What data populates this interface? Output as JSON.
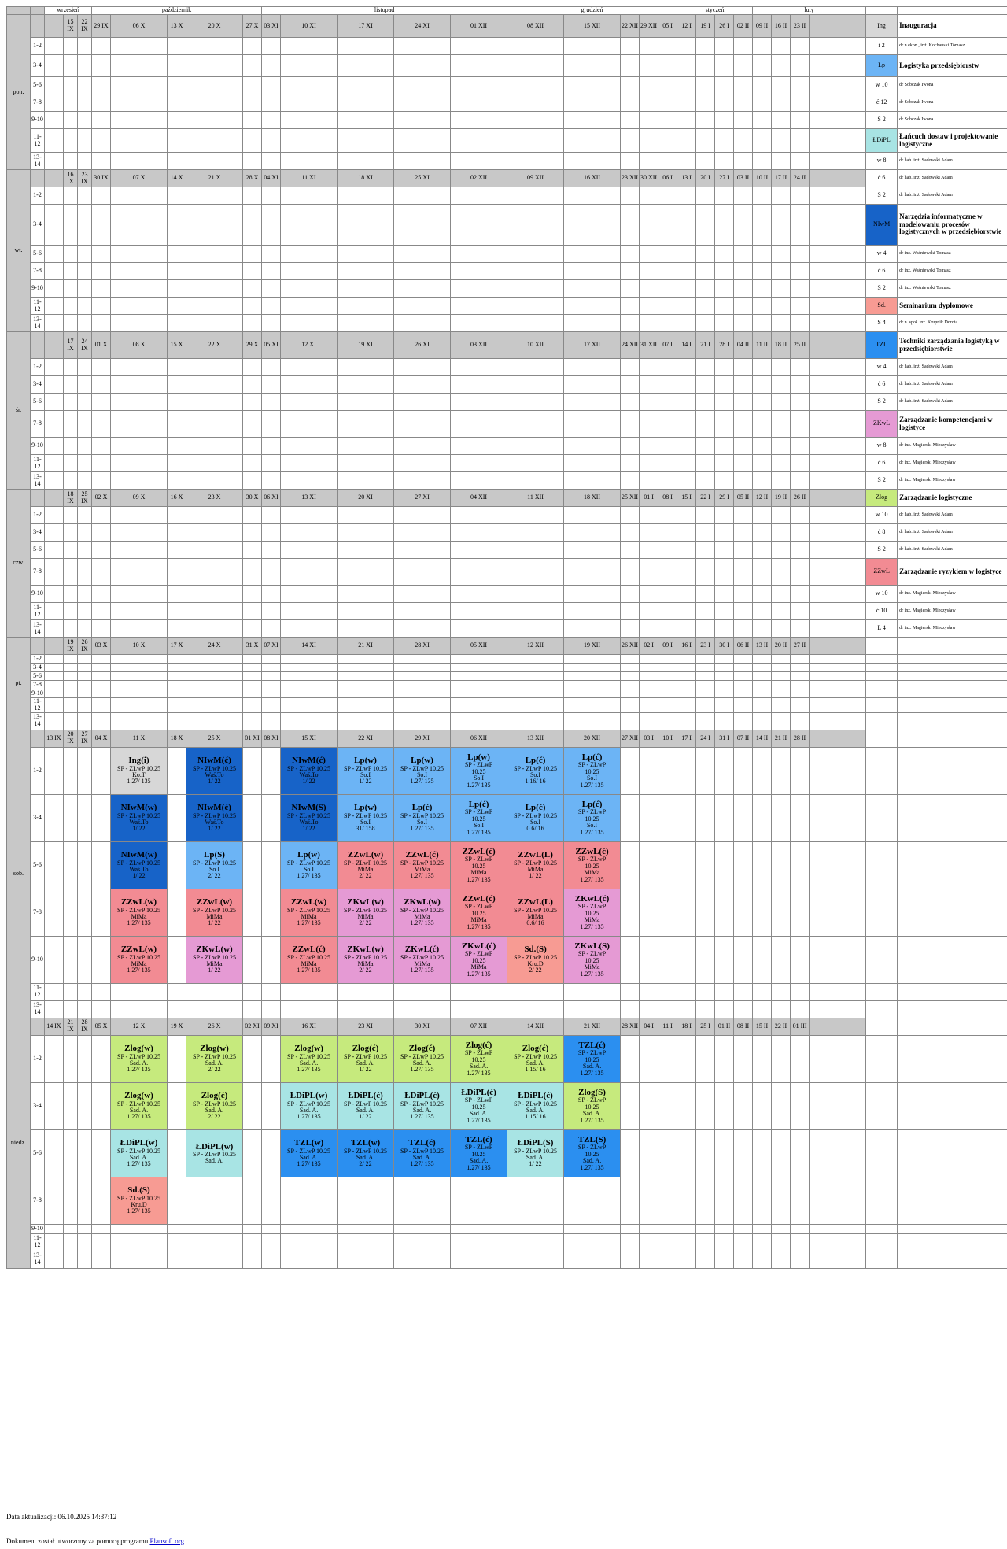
{
  "months": [
    {
      "label": "wrzesień",
      "span": 3
    },
    {
      "label": "październik",
      "span": 5
    },
    {
      "label": "listopad",
      "span": 5
    },
    {
      "label": "grudzień",
      "span": 5
    },
    {
      "label": "styczeń",
      "span": 4
    },
    {
      "label": "luty",
      "span": 3
    }
  ],
  "hours": [
    "1-2",
    "3-4",
    "5-6",
    "7-8",
    "9-10",
    "11-12",
    "13-14"
  ],
  "days": [
    {
      "name": "pon.",
      "dates": [
        "15 IX",
        "22 IX",
        "29 IX",
        "06 X",
        "13 X",
        "20 X",
        "27 X",
        "03 XI",
        "10 XI",
        "17 XI",
        "24 XI",
        "01 XII",
        "08 XII",
        "15 XII",
        "22 XII",
        "29 XII",
        "05 I",
        "12 I",
        "19 I",
        "26 I",
        "02 II",
        "09 II",
        "16 II",
        "23 II"
      ]
    },
    {
      "name": "wt.",
      "dates": [
        "16 IX",
        "23 IX",
        "30 IX",
        "07 X",
        "14 X",
        "21 X",
        "28 X",
        "04 XI",
        "11 XI",
        "18 XI",
        "25 XI",
        "02 XII",
        "09 XII",
        "16 XII",
        "23 XII",
        "30 XII",
        "06 I",
        "13 I",
        "20 I",
        "27 I",
        "03 II",
        "10 II",
        "17 II",
        "24 II"
      ]
    },
    {
      "name": "śr.",
      "dates": [
        "17 IX",
        "24 IX",
        "01 X",
        "08 X",
        "15 X",
        "22 X",
        "29 X",
        "05 XI",
        "12 XI",
        "19 XI",
        "26 XI",
        "03 XII",
        "10 XII",
        "17 XII",
        "24 XII",
        "31 XII",
        "07 I",
        "14 I",
        "21 I",
        "28 I",
        "04 II",
        "11 II",
        "18 II",
        "25 II"
      ]
    },
    {
      "name": "czw.",
      "dates": [
        "18 IX",
        "25 IX",
        "02 X",
        "09 X",
        "16 X",
        "23 X",
        "30 X",
        "06 XI",
        "13 XI",
        "20 XI",
        "27 XI",
        "04 XII",
        "11 XII",
        "18 XII",
        "25 XII",
        "01 I",
        "08 I",
        "15 I",
        "22 I",
        "29 I",
        "05 II",
        "12 II",
        "19 II",
        "26 II"
      ]
    },
    {
      "name": "pt.",
      "dates": [
        "19 IX",
        "26 IX",
        "03 X",
        "10 X",
        "17 X",
        "24 X",
        "31 X",
        "07 XI",
        "14 XI",
        "21 XI",
        "28 XI",
        "05 XII",
        "12 XII",
        "19 XII",
        "26 XII",
        "02 I",
        "09 I",
        "16 I",
        "23 I",
        "30 I",
        "06 II",
        "13 II",
        "20 II",
        "27 II"
      ]
    },
    {
      "name": "sob.",
      "dates": [
        "13 IX",
        "20 IX",
        "27 IX",
        "04 X",
        "11 X",
        "18 X",
        "25 X",
        "01 XI",
        "08 XI",
        "15 XI",
        "22 XI",
        "29 XI",
        "06 XII",
        "13 XII",
        "20 XII",
        "27 XII",
        "03 I",
        "10 I",
        "17 I",
        "24 I",
        "31 I",
        "07 II",
        "14 II",
        "21 II",
        "28 II"
      ]
    },
    {
      "name": "niedz.",
      "dates": [
        "14 IX",
        "21 IX",
        "28 IX",
        "05 X",
        "12 X",
        "19 X",
        "26 X",
        "02 XI",
        "09 XI",
        "16 XI",
        "23 XI",
        "30 XI",
        "07 XII",
        "14 XII",
        "21 XII",
        "28 XII",
        "04 I",
        "11 I",
        "18 I",
        "25 I",
        "01 II",
        "08 II",
        "15 II",
        "22 II",
        "01 III"
      ]
    }
  ],
  "legend": [
    {
      "abbr": "Ing",
      "desc": "Inauguracja",
      "bold": true,
      "color": "#d7d7d7"
    },
    {
      "abbr": "i 2",
      "desc": "dr n.ekon., inż. Kochański Tomasz"
    },
    {
      "abbr": "Lp",
      "desc": "Logistyka przedsiębiorstw",
      "bold": true,
      "color": "#6cb4f5"
    },
    {
      "abbr": "w 10",
      "desc": "dr Sobczak Iwona"
    },
    {
      "abbr": "ć 12",
      "desc": "dr Sobczak Iwona"
    },
    {
      "abbr": "S 2",
      "desc": "dr Sobczak Iwona"
    },
    {
      "abbr": "ŁDiPL",
      "desc": "Łańcuch dostaw i projektowanie logistyczne",
      "bold": true,
      "color": "#a8e4e4"
    },
    {
      "abbr": "w 8",
      "desc": "dr hab. inż. Sadowski Adam"
    },
    {
      "abbr": "ć 6",
      "desc": "dr hab. inż. Sadowski Adam"
    },
    {
      "abbr": "S 2",
      "desc": "dr hab. inż. Sadowski Adam"
    },
    {
      "abbr": "NIwM",
      "desc": "Narzędzia informatyczne w modelowaniu procesów logistycznych w przedsiębiorstwie",
      "bold": true,
      "color": "#1763c8"
    },
    {
      "abbr": "w 4",
      "desc": "dr inż. Waśniewski Tomasz"
    },
    {
      "abbr": "ć 6",
      "desc": "dr inż. Waśniewski Tomasz"
    },
    {
      "abbr": "S 2",
      "desc": "dr inż. Waśniewski Tomasz"
    },
    {
      "abbr": "Sd.",
      "desc": "Seminarium dyplomowe",
      "bold": true,
      "color": "#f79b93"
    },
    {
      "abbr": "S 4",
      "desc": "dr n. społ. inż. Krupnik Dorota"
    },
    {
      "abbr": "TZL",
      "desc": "Techniki zarządzania logistyką w przedsiębiorstwie",
      "bold": true,
      "color": "#2b8ff0"
    },
    {
      "abbr": "w 4",
      "desc": "dr hab. inż. Sadowski Adam"
    },
    {
      "abbr": "ć 6",
      "desc": "dr hab. inż. Sadowski Adam"
    },
    {
      "abbr": "S 2",
      "desc": "dr hab. inż. Sadowski Adam"
    },
    {
      "abbr": "ZKwL",
      "desc": "Zarządzanie kompetencjami w logistyce",
      "bold": true,
      "color": "#e59ad4"
    },
    {
      "abbr": "w 8",
      "desc": "dr inż. Magierski Mieczysław"
    },
    {
      "abbr": "ć 6",
      "desc": "dr inż. Magierski Mieczysław"
    },
    {
      "abbr": "S 2",
      "desc": "dr inż. Magierski Mieczysław"
    },
    {
      "abbr": "Zlog",
      "desc": "Zarządzanie logistyczne",
      "bold": true,
      "color": "#c6ea7d"
    },
    {
      "abbr": "w 10",
      "desc": "dr hab. inż. Sadowski Adam"
    },
    {
      "abbr": "ć 8",
      "desc": "dr hab. inż. Sadowski Adam"
    },
    {
      "abbr": "S 2",
      "desc": "dr hab. inż. Sadowski Adam"
    },
    {
      "abbr": "ZZwL",
      "desc": "Zarządzanie ryzykiem w logistyce",
      "bold": true,
      "color": "#f28b93"
    },
    {
      "abbr": "w 10",
      "desc": "dr inż. Magierski Mieczysław"
    },
    {
      "abbr": "ć 10",
      "desc": "dr inż. Magierski Mieczysław"
    },
    {
      "abbr": "L 4",
      "desc": "dr inż. Magierski Mieczysław"
    }
  ],
  "events": {
    "sob.": {
      "0": {
        "4": {
          "c": "ng",
          "t": "Ing(i)",
          "l": [
            "SP - ZLwP 10.25",
            "Ko.T",
            "1.27/ 135"
          ]
        },
        "6": {
          "c": "nl",
          "t": "NIwM(ć)",
          "l": [
            "SP - ZLwP 10.25",
            "Waś.To",
            "1/ 22"
          ]
        },
        "9": {
          "c": "nl",
          "t": "NIwM(ć)",
          "l": [
            "SP - ZLwP 10.25",
            "Waś.To",
            "1/ 22"
          ]
        },
        "10": {
          "c": "lp",
          "t": "Lp(w)",
          "l": [
            "SP - ZLwP 10.25",
            "So.I",
            "1/ 22"
          ]
        },
        "11": {
          "c": "lp",
          "t": "Lp(w)",
          "l": [
            "SP - ZLwP 10.25",
            "So.I",
            "1.27/ 135"
          ]
        },
        "12": {
          "c": "lp",
          "t": "Lp(w)",
          "l": [
            "SP - ZLwP",
            "10.25",
            "So.I",
            "1.27/ 135"
          ]
        },
        "13": {
          "c": "lp",
          "t": "Lp(ć)",
          "l": [
            "SP - ZLwP 10.25",
            "So.I",
            "1.16/ 16"
          ]
        },
        "14": {
          "c": "lp",
          "t": "Lp(ć)",
          "l": [
            "SP - ZLwP",
            "10.25",
            "So.I",
            "1.27/ 135"
          ]
        }
      },
      "1": {
        "4": {
          "c": "nl",
          "t": "NIwM(w)",
          "l": [
            "SP - ZLwP 10.25",
            "Waś.To",
            "1/ 22"
          ]
        },
        "6": {
          "c": "nl",
          "t": "NIwM(ć)",
          "l": [
            "SP - ZLwP 10.25",
            "Waś.To",
            "1/ 22"
          ]
        },
        "9": {
          "c": "nl",
          "t": "NIwM(S)",
          "l": [
            "SP - ZLwP 10.25",
            "Waś.To",
            "1/ 22"
          ]
        },
        "10": {
          "c": "lp",
          "t": "Lp(w)",
          "l": [
            "SP - ZLwP 10.25",
            "So.I",
            "31/ 158"
          ]
        },
        "11": {
          "c": "lp",
          "t": "Lp(ć)",
          "l": [
            "SP - ZLwP 10.25",
            "So.I",
            "1.27/ 135"
          ]
        },
        "12": {
          "c": "lp",
          "t": "Lp(ć)",
          "l": [
            "SP - ZLwP",
            "10.25",
            "So.I",
            "1.27/ 135"
          ]
        },
        "13": {
          "c": "lp",
          "t": "Lp(ć)",
          "l": [
            "SP - ZLwP 10.25",
            "So.I",
            "0.6/ 16"
          ]
        },
        "14": {
          "c": "lp",
          "t": "Lp(ć)",
          "l": [
            "SP - ZLwP",
            "10.25",
            "So.I",
            "1.27/ 135"
          ]
        }
      },
      "2": {
        "4": {
          "c": "nl",
          "t": "NIwM(w)",
          "l": [
            "SP - ZLwP 10.25",
            "Waś.To",
            "1/ 22"
          ]
        },
        "6": {
          "c": "lp",
          "t": "Lp(S)",
          "l": [
            "SP - ZLwP 10.25",
            "So.I",
            "2/ 22"
          ]
        },
        "9": {
          "c": "lp",
          "t": "Lp(w)",
          "l": [
            "SP - ZLwP 10.25",
            "So.I",
            "1.27/ 135"
          ]
        },
        "10": {
          "c": "zz",
          "t": "ZZwL(w)",
          "l": [
            "SP - ZLwP 10.25",
            "MiMa",
            "2/ 22"
          ]
        },
        "11": {
          "c": "zz",
          "t": "ZZwL(ć)",
          "l": [
            "SP - ZLwP 10.25",
            "MiMa",
            "1.27/ 135"
          ]
        },
        "12": {
          "c": "zz",
          "t": "ZZwL(ć)",
          "l": [
            "SP - ZLwP",
            "10.25",
            "MiMa",
            "1.27/ 135"
          ]
        },
        "13": {
          "c": "zz",
          "t": "ZZwL(L)",
          "l": [
            "SP - ZLwP 10.25",
            "MiMa",
            "1/ 22"
          ]
        },
        "14": {
          "c": "zz",
          "t": "ZZwL(ć)",
          "l": [
            "SP - ZLwP",
            "10.25",
            "MiMa",
            "1.27/ 135"
          ]
        }
      },
      "3": {
        "4": {
          "c": "zz",
          "t": "ZZwL(w)",
          "l": [
            "SP - ZLwP 10.25",
            "MiMa",
            "1.27/ 135"
          ]
        },
        "6": {
          "c": "zz",
          "t": "ZZwL(w)",
          "l": [
            "SP - ZLwP 10.25",
            "MiMa",
            "1/ 22"
          ]
        },
        "9": {
          "c": "zz",
          "t": "ZZwL(w)",
          "l": [
            "SP - ZLwP 10.25",
            "MiMa",
            "1.27/ 135"
          ]
        },
        "10": {
          "c": "zk",
          "t": "ZKwL(w)",
          "l": [
            "SP - ZLwP 10.25",
            "MiMa",
            "2/ 22"
          ]
        },
        "11": {
          "c": "zk",
          "t": "ZKwL(w)",
          "l": [
            "SP - ZLwP 10.25",
            "MiMa",
            "1.27/ 135"
          ]
        },
        "12": {
          "c": "zz",
          "t": "ZZwL(ć)",
          "l": [
            "SP - ZLwP",
            "10.25",
            "MiMa",
            "1.27/ 135"
          ]
        },
        "13": {
          "c": "zz",
          "t": "ZZwL(L)",
          "l": [
            "SP - ZLwP 10.25",
            "MiMa",
            "0.6/ 16"
          ]
        },
        "14": {
          "c": "zk",
          "t": "ZKwL(ć)",
          "l": [
            "SP - ZLwP",
            "10.25",
            "MiMa",
            "1.27/ 135"
          ]
        }
      },
      "4": {
        "4": {
          "c": "zz",
          "t": "ZZwL(w)",
          "l": [
            "SP - ZLwP 10.25",
            "MiMa",
            "1.27/ 135"
          ]
        },
        "6": {
          "c": "zk",
          "t": "ZKwL(w)",
          "l": [
            "SP - ZLwP 10.25",
            "MiMa",
            "1/ 22"
          ]
        },
        "9": {
          "c": "zz",
          "t": "ZZwL(ć)",
          "l": [
            "SP - ZLwP 10.25",
            "MiMa",
            "1.27/ 135"
          ]
        },
        "10": {
          "c": "zk",
          "t": "ZKwL(w)",
          "l": [
            "SP - ZLwP 10.25",
            "MiMa",
            "2/ 22"
          ]
        },
        "11": {
          "c": "zk",
          "t": "ZKwL(ć)",
          "l": [
            "SP - ZLwP 10.25",
            "MiMa",
            "1.27/ 135"
          ]
        },
        "12": {
          "c": "zk",
          "t": "ZKwL(ć)",
          "l": [
            "SP - ZLwP",
            "10.25",
            "MiMa",
            "1.27/ 135"
          ]
        },
        "13": {
          "c": "sd",
          "t": "Sd.(S)",
          "l": [
            "SP - ZLwP 10.25",
            "Kru.D",
            "2/ 22"
          ]
        },
        "14": {
          "c": "zk",
          "t": "ZKwL(S)",
          "l": [
            "SP - ZLwP",
            "10.25",
            "MiMa",
            "1.27/ 135"
          ]
        }
      }
    },
    "niedz.": {
      "0": {
        "4": {
          "c": "zg",
          "t": "Zlog(w)",
          "l": [
            "SP - ZLwP 10.25",
            "Sad. A.",
            "1.27/ 135"
          ]
        },
        "6": {
          "c": "zg",
          "t": "Zlog(w)",
          "l": [
            "SP - ZLwP 10.25",
            "Sad. A.",
            "2/ 22"
          ]
        },
        "9": {
          "c": "zg",
          "t": "Zlog(w)",
          "l": [
            "SP - ZLwP 10.25",
            "Sad. A.",
            "1.27/ 135"
          ]
        },
        "10": {
          "c": "zg",
          "t": "Zlog(ć)",
          "l": [
            "SP - ZLwP 10.25",
            "Sad. A.",
            "1/ 22"
          ]
        },
        "11": {
          "c": "zg",
          "t": "Zlog(ć)",
          "l": [
            "SP - ZLwP 10.25",
            "Sad. A.",
            "1.27/ 135"
          ]
        },
        "12": {
          "c": "zg",
          "t": "Zlog(ć)",
          "l": [
            "SP - ZLwP",
            "10.25",
            "Sad. A.",
            "1.27/ 135"
          ]
        },
        "13": {
          "c": "zg",
          "t": "Zlog(ć)",
          "l": [
            "SP - ZLwP 10.25",
            "Sad. A.",
            "1.15/ 16"
          ]
        },
        "14": {
          "c": "tz",
          "t": "TZL(ć)",
          "l": [
            "SP - ZLwP",
            "10.25",
            "Sad. A.",
            "1.27/ 135"
          ]
        }
      },
      "1": {
        "4": {
          "c": "zg",
          "t": "Zlog(w)",
          "l": [
            "SP - ZLwP 10.25",
            "Sad. A.",
            "1.27/ 135"
          ]
        },
        "6": {
          "c": "zg",
          "t": "Zlog(ć)",
          "l": [
            "SP - ZLwP 10.25",
            "Sad. A.",
            "2/ 22"
          ]
        },
        "9": {
          "c": "ld",
          "t": "ŁDiPL(w)",
          "l": [
            "SP - ZLwP 10.25",
            "Sad. A.",
            "1.27/ 135"
          ]
        },
        "10": {
          "c": "ld",
          "t": "ŁDiPL(ć)",
          "l": [
            "SP - ZLwP 10.25",
            "Sad. A.",
            "1/ 22"
          ]
        },
        "11": {
          "c": "ld",
          "t": "ŁDiPL(ć)",
          "l": [
            "SP - ZLwP 10.25",
            "Sad. A.",
            "1.27/ 135"
          ]
        },
        "12": {
          "c": "ld",
          "t": "ŁDiPL(ć)",
          "l": [
            "SP - ZLwP",
            "10.25",
            "Sad. A.",
            "1.27/ 135"
          ]
        },
        "13": {
          "c": "ld",
          "t": "ŁDiPL(ć)",
          "l": [
            "SP - ZLwP 10.25",
            "Sad. A.",
            "1.15/ 16"
          ]
        },
        "14": {
          "c": "zg",
          "t": "Zlog(S)",
          "l": [
            "SP - ZLwP",
            "10.25",
            "Sad. A.",
            "1.27/ 135"
          ]
        }
      },
      "2": {
        "4": {
          "c": "ld",
          "t": "ŁDiPL(w)",
          "l": [
            "SP - ZLwP 10.25",
            "Sad. A.",
            "1.27/ 135"
          ]
        },
        "6": {
          "c": "ld",
          "t": "ŁDiPL(w)",
          "l": [
            "SP - ZLwP 10.25",
            "Sad. A."
          ]
        },
        "9": {
          "c": "tz",
          "t": "TZL(w)",
          "l": [
            "SP - ZLwP 10.25",
            "Sad. A.",
            "1.27/ 135"
          ]
        },
        "10": {
          "c": "tz",
          "t": "TZL(w)",
          "l": [
            "SP - ZLwP 10.25",
            "Sad. A.",
            "2/ 22"
          ]
        },
        "11": {
          "c": "tz",
          "t": "TZL(ć)",
          "l": [
            "SP - ZLwP 10.25",
            "Sad. A.",
            "1.27/ 135"
          ]
        },
        "12": {
          "c": "tz",
          "t": "TZL(ć)",
          "l": [
            "SP - ZLwP",
            "10.25",
            "Sad. A.",
            "1.27/ 135"
          ]
        },
        "13": {
          "c": "ld",
          "t": "ŁDiPL(S)",
          "l": [
            "SP - ZLwP 10.25",
            "Sad. A.",
            "1/ 22"
          ]
        },
        "14": {
          "c": "tz",
          "t": "TZL(S)",
          "l": [
            "SP - ZLwP",
            "10.25",
            "Sad. A.",
            "1.27/ 135"
          ]
        }
      },
      "3": {
        "4": {
          "c": "sd",
          "t": "Sd.(S)",
          "l": [
            "SP - ZLwP 10.25",
            "Kru.D",
            "1.27/ 135"
          ]
        }
      }
    }
  },
  "footer": {
    "updated": "Data aktualizacji: 06.10.2025 14:37:12",
    "generated_prefix": "Dokument został utworzony za pomocą programu ",
    "generated_link": "Plansoft.org"
  }
}
